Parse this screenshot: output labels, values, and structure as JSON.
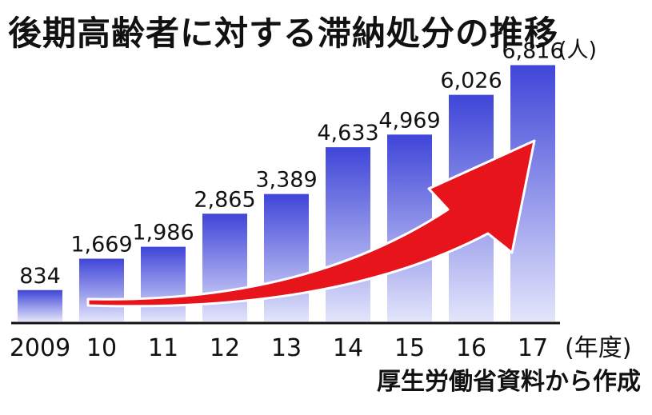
{
  "title": "後期高齢者に対する滞納処分の推移",
  "source": "厚生労働省資料から作成",
  "chart_data": {
    "type": "bar",
    "categories": [
      "2009",
      "10",
      "11",
      "12",
      "13",
      "14",
      "15",
      "16",
      "17"
    ],
    "values": [
      834,
      1669,
      1986,
      2865,
      3389,
      4633,
      4969,
      6026,
      6816
    ],
    "value_labels": [
      "834",
      "1,669",
      "1,986",
      "2,865",
      "3,389",
      "4,633",
      "4,969",
      "6,026",
      "6,816"
    ],
    "title": "後期高齢者に対する滞納処分の推移",
    "xlabel": "(年度)",
    "ylabel": "(人)",
    "ylim": [
      0,
      7400
    ],
    "grid": false,
    "legend": "none",
    "trend_arrow": true,
    "colors": {
      "bar_top": "#3f45d8",
      "bar_bottom": "#e3e5fb",
      "arrow": "#e8141c",
      "axis": "#111111"
    }
  }
}
